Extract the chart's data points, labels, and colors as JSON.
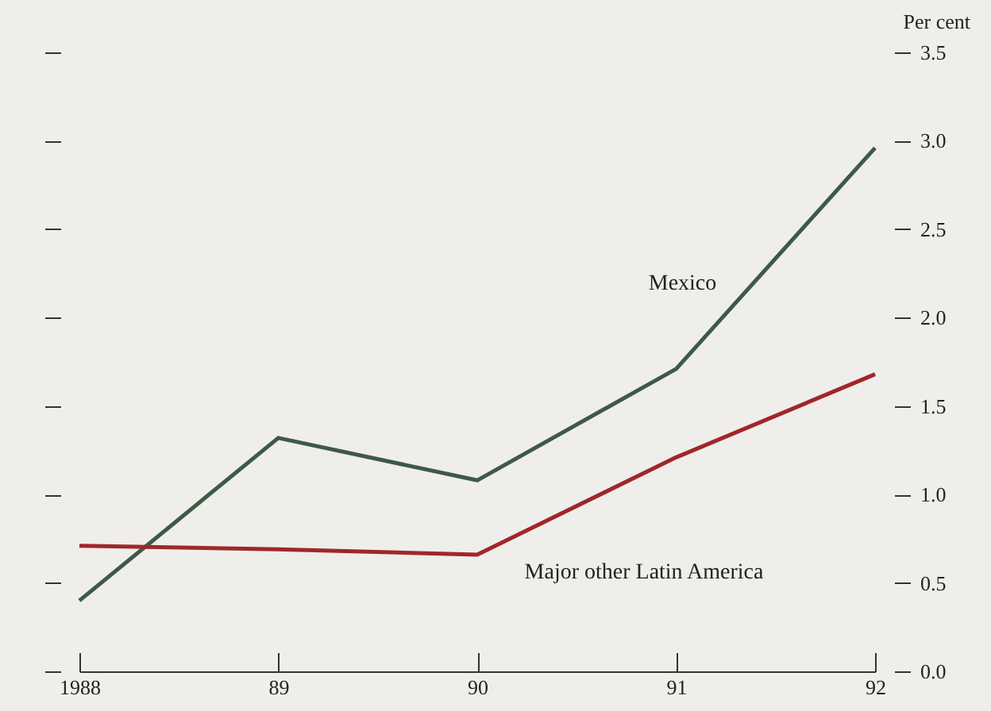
{
  "chart_data": {
    "type": "line",
    "ylabel": "Per cent",
    "categories": [
      "1988",
      "89",
      "90",
      "91",
      "92"
    ],
    "series": [
      {
        "name": "Mexico",
        "color": "#3d5a45",
        "values": [
          0.4,
          1.32,
          1.08,
          1.71,
          2.96
        ]
      },
      {
        "name": "Major other Latin America",
        "color": "#a0262b",
        "values": [
          0.71,
          0.69,
          0.66,
          1.21,
          1.68
        ]
      }
    ],
    "ylim": [
      0,
      3.5
    ],
    "yticks": [
      {
        "value": 0,
        "label": "0.0"
      },
      {
        "value": 0.5,
        "label": "0.5"
      },
      {
        "value": 1,
        "label": "1.0"
      },
      {
        "value": 1.5,
        "label": "1.5"
      },
      {
        "value": 2,
        "label": "2.0"
      },
      {
        "value": 2.5,
        "label": "2.5"
      },
      {
        "value": 3,
        "label": "3.0"
      },
      {
        "value": 3.5,
        "label": "3.5"
      }
    ],
    "grid": false,
    "legend": false,
    "marker": "none",
    "line_style": "solid"
  }
}
